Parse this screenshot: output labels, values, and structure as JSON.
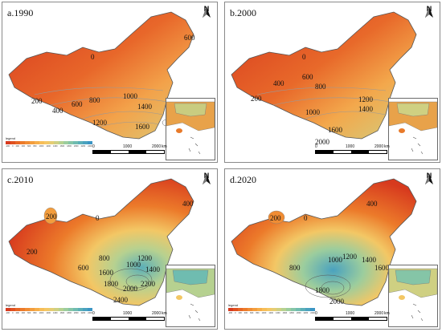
{
  "legend": {
    "title": "legend",
    "colors": [
      "#d73a1e",
      "#e0501f",
      "#e76624",
      "#ec7a2a",
      "#f08c33",
      "#f39d3d",
      "#f6ae49",
      "#f7bd57",
      "#f3c765",
      "#e5cc73",
      "#cfd082",
      "#b6d190",
      "#9ccd9d",
      "#85c5a7",
      "#6fbcb0",
      "#5bafb8",
      "#4aa2bf",
      "#3b95c4"
    ],
    "ticks": [
      "-200",
      "0",
      "200",
      "400",
      "600",
      "800",
      "1000",
      "1200",
      "1400",
      "1600",
      "1800",
      "2000",
      "2200",
      "2400"
    ]
  },
  "scale_labels": [
    "0",
    "1000",
    "2000"
  ],
  "scale_unit": "km",
  "north_label": "N",
  "panels": [
    {
      "id": "a",
      "label": "a.1990",
      "contours": [
        "0",
        "200",
        "400",
        "600",
        "800",
        "1000",
        "1200",
        "1400",
        "1600",
        "600"
      ]
    },
    {
      "id": "b",
      "label": "b.2000",
      "contours": [
        "0",
        "200",
        "400",
        "600",
        "800",
        "1000",
        "1200",
        "1400",
        "1600",
        "2000"
      ]
    },
    {
      "id": "c",
      "label": "c.2010",
      "contours": [
        "0",
        "200",
        "200",
        "400",
        "600",
        "800",
        "1000",
        "1200",
        "1400",
        "1600",
        "1800",
        "2000",
        "2200",
        "2400"
      ]
    },
    {
      "id": "d",
      "label": "d.2020",
      "contours": [
        "0",
        "200",
        "400",
        "800",
        "1000",
        "1200",
        "1400",
        "1600",
        "1800",
        "2000"
      ]
    }
  ]
}
